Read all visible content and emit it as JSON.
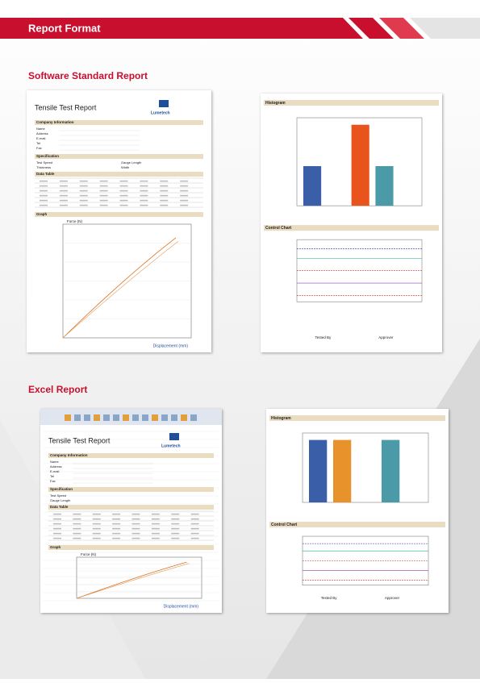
{
  "header": {
    "title": "Report Format"
  },
  "software_report": {
    "title": "Software Standard Report",
    "report_title": "Tensile Test Report",
    "logo": "Lumetech",
    "sections": [
      "Company Information",
      "Specification",
      "Data Table",
      "Graph"
    ],
    "company_fields": [
      "Name",
      "Address",
      "E-mail",
      "Tel",
      "Fax"
    ],
    "spec_fields": [
      "Test Speed",
      "Thickness",
      "Gauge Length",
      "Width"
    ],
    "y_label": "Force (N)",
    "x_label": "Displacement (mm)",
    "histogram": "Histogram",
    "control_chart": "Control Chart",
    "signatures": [
      "Tested By",
      "Approver"
    ]
  },
  "excel_report": {
    "title": "Excel Report",
    "report_title": "Tensile Test Report",
    "logo": "Lumetech",
    "sections": [
      "Company Information",
      "Specification",
      "Data Table",
      "Graph"
    ],
    "company_fields": [
      "Name",
      "Address",
      "E-mail",
      "Tel",
      "Fax"
    ],
    "spec_fields": [
      "Test Speed",
      "Gauge Length"
    ],
    "y_label": "Force (N)",
    "x_label": "Displacement (mm)",
    "histogram": "Histogram",
    "control_chart": "Control Chart",
    "signatures": [
      "Tested By",
      "Approver"
    ]
  }
}
